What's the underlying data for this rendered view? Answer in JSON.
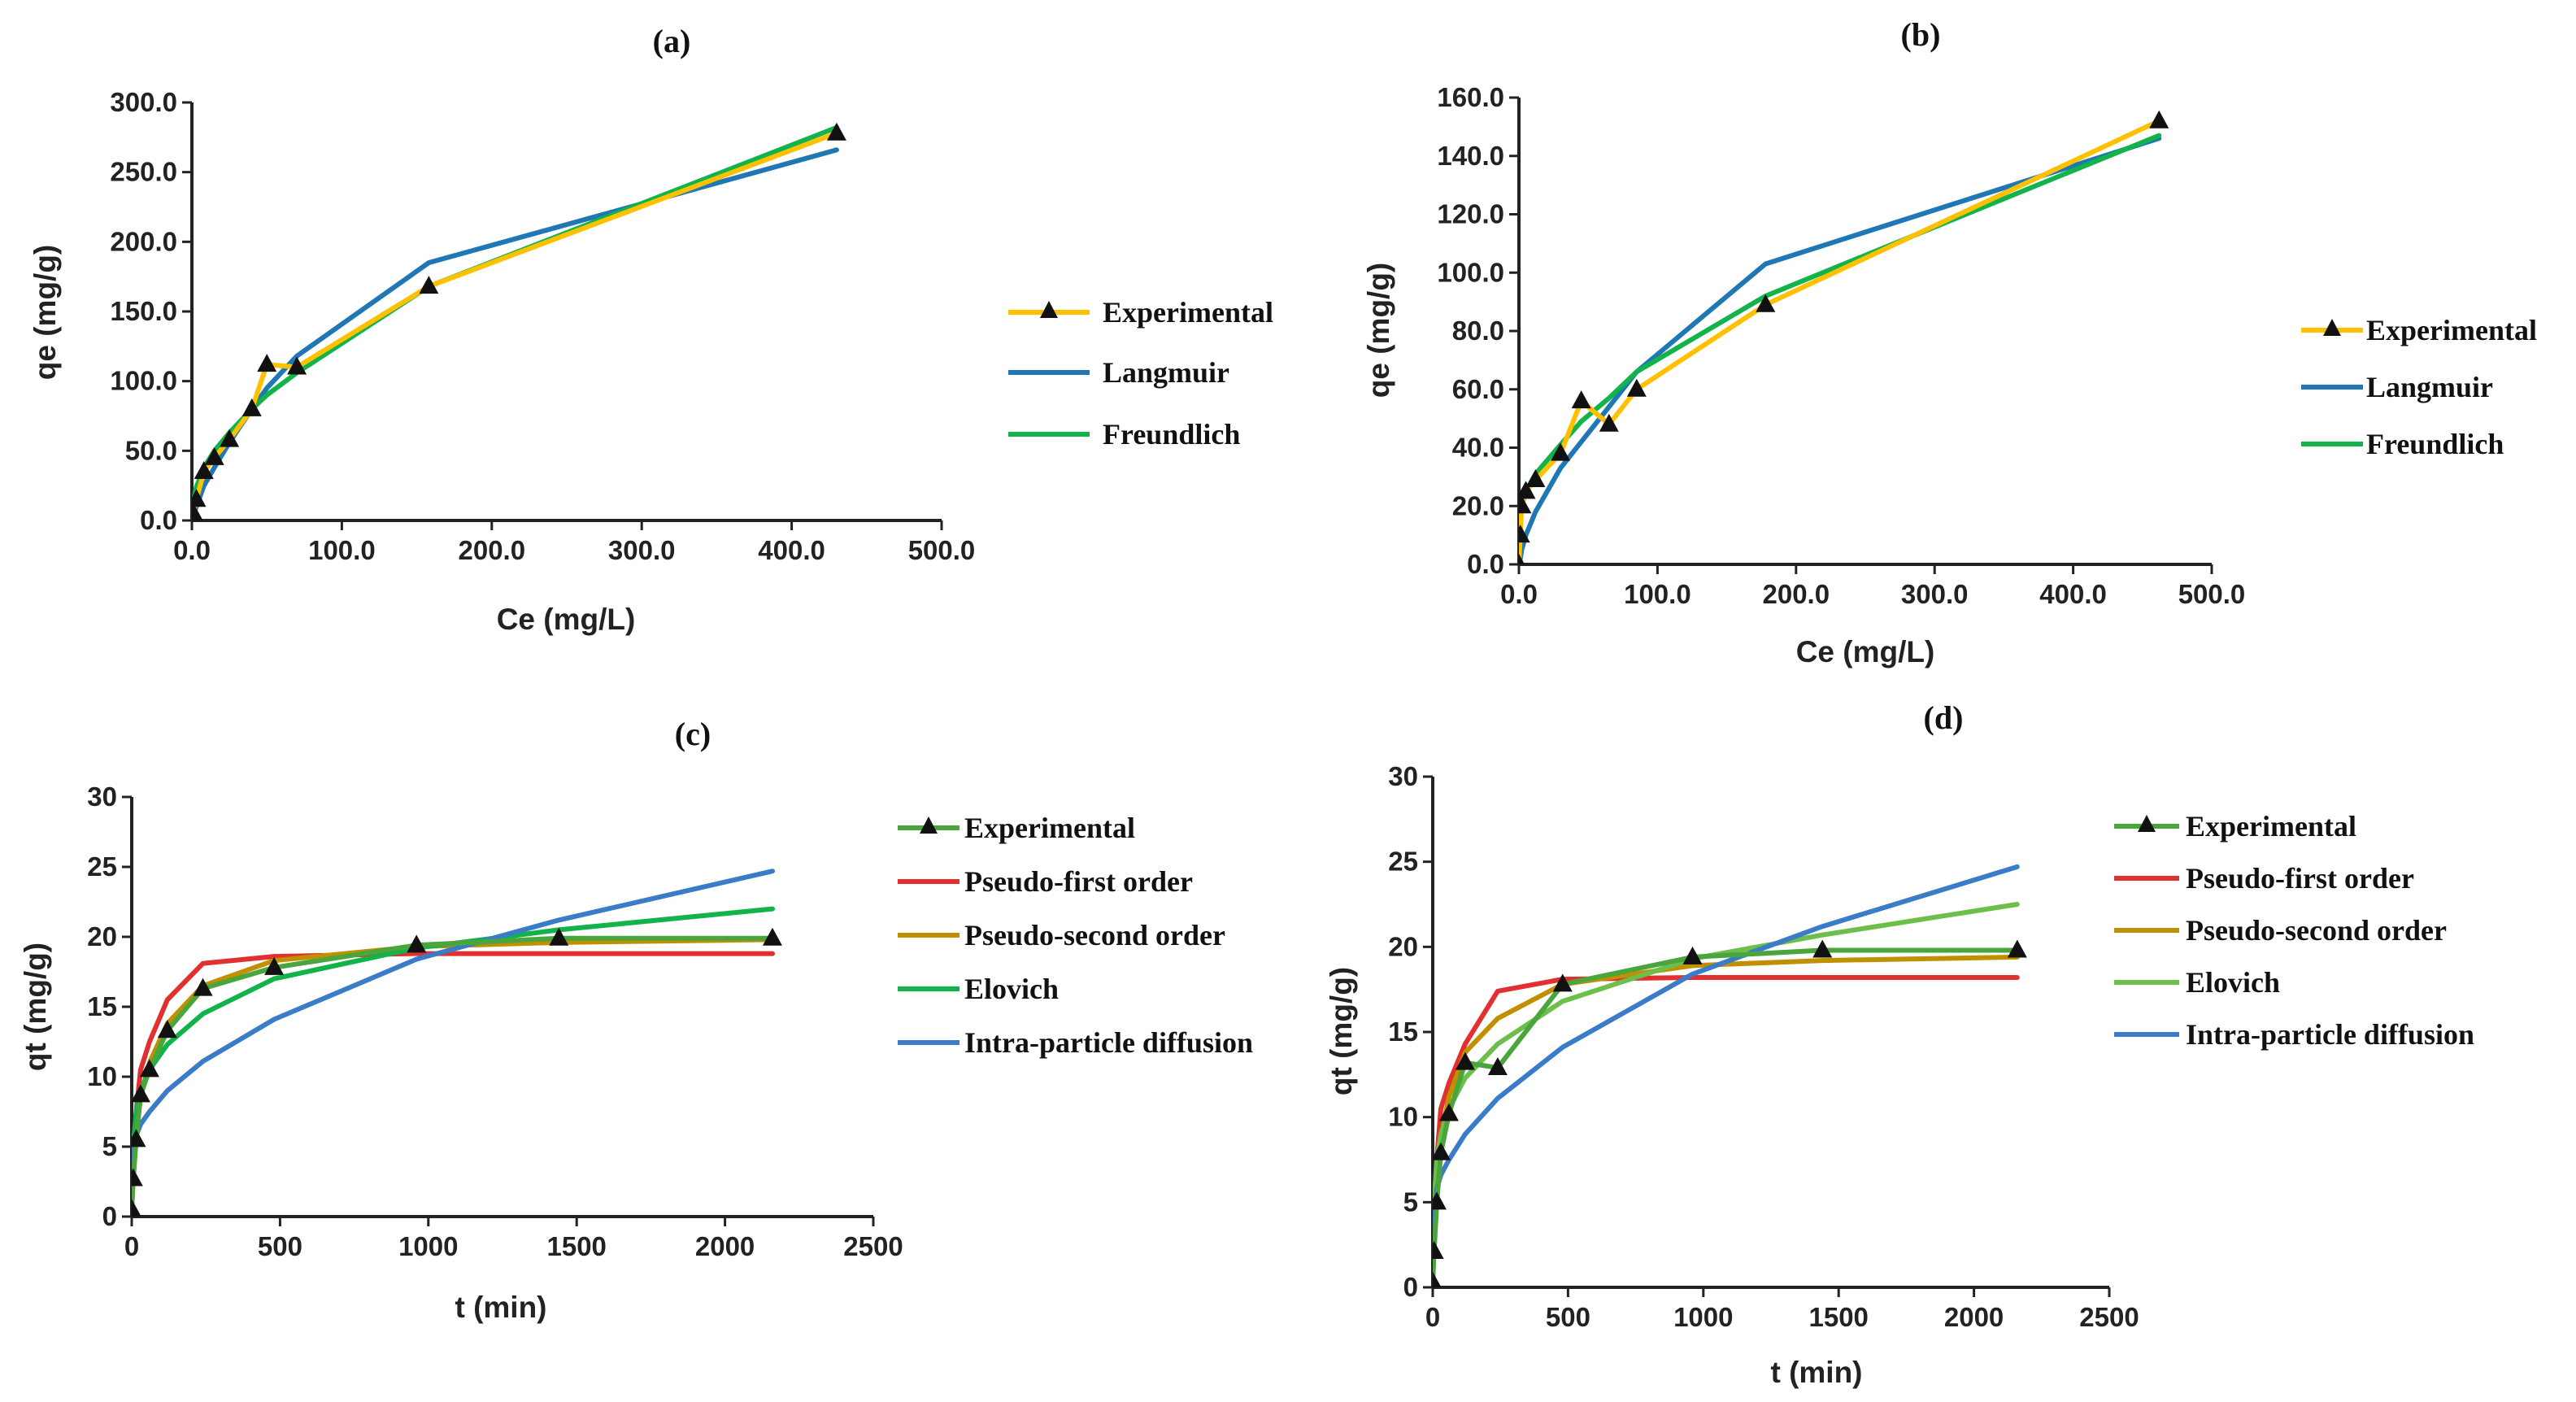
{
  "colors": {
    "experimental_ab": "#ffc000",
    "experimental_cd": "#4aa63c",
    "langmuir": "#1f77b4",
    "freundlich": "#11b34a",
    "pfo": "#e03030",
    "pso": "#c09000",
    "elovich_c": "#11b34a",
    "elovich_d": "#6cbf4a",
    "ipd": "#3a7cc8",
    "axis": "#222222",
    "marker": "#111111"
  },
  "chart_data": [
    {
      "id": "a",
      "type": "line",
      "title": "(a)",
      "xlabel": "Ce (mg/L)",
      "ylabel": "qe (mg/g)",
      "xlim": [
        0,
        500
      ],
      "ylim": [
        0,
        300
      ],
      "xticks": [
        0,
        100,
        200,
        300,
        400,
        500
      ],
      "yticks": [
        0,
        50,
        100,
        150,
        200,
        250,
        300
      ],
      "xtick_labels": [
        "0.0",
        "100.0",
        "200.0",
        "300.0",
        "400.0",
        "500.0"
      ],
      "ytick_labels": [
        "0.0",
        "50.0",
        "100.0",
        "150.0",
        "200.0",
        "250.0",
        "300.0"
      ],
      "grid": false,
      "legend_position": "right",
      "series": [
        {
          "name": "Experimental",
          "color_key": "experimental_ab",
          "marker": "triangle",
          "x": [
            0,
            1,
            3,
            8,
            15,
            25,
            40,
            50,
            70,
            158,
            430
          ],
          "y": [
            0,
            5,
            15,
            35,
            45,
            58,
            80,
            112,
            110,
            168,
            278
          ]
        },
        {
          "name": "Langmuir",
          "color_key": "langmuir",
          "marker": "none",
          "x": [
            0,
            1,
            3,
            8,
            15,
            25,
            40,
            50,
            70,
            158,
            430
          ],
          "y": [
            0,
            4,
            10,
            25,
            38,
            56,
            80,
            95,
            118,
            185,
            266
          ]
        },
        {
          "name": "Freundlich",
          "color_key": "freundlich",
          "marker": "none",
          "x": [
            0,
            1,
            3,
            8,
            15,
            25,
            40,
            50,
            70,
            158,
            430
          ],
          "y": [
            0,
            14,
            24,
            38,
            50,
            63,
            80,
            90,
            106,
            168,
            282
          ]
        }
      ]
    },
    {
      "id": "b",
      "type": "line",
      "title": "(b)",
      "xlabel": "Ce (mg/L)",
      "ylabel": "qe (mg/g)",
      "xlim": [
        0,
        500
      ],
      "ylim": [
        0,
        160
      ],
      "xticks": [
        0,
        100,
        200,
        300,
        400,
        500
      ],
      "yticks": [
        0,
        20,
        40,
        60,
        80,
        100,
        120,
        140,
        160
      ],
      "xtick_labels": [
        "0.0",
        "100.0",
        "200.0",
        "300.0",
        "400.0",
        "500.0"
      ],
      "ytick_labels": [
        "0.0",
        "20.0",
        "40.0",
        "60.0",
        "80.0",
        "100.0",
        "120.0",
        "140.0",
        "160.0"
      ],
      "grid": false,
      "legend_position": "right",
      "series": [
        {
          "name": "Experimental",
          "color_key": "experimental_ab",
          "marker": "triangle",
          "x": [
            0,
            1,
            2,
            5,
            12,
            30,
            45,
            65,
            85,
            178,
            462
          ],
          "y": [
            0,
            10,
            20,
            25,
            29,
            38,
            56,
            48,
            60,
            89,
            152
          ]
        },
        {
          "name": "Langmuir",
          "color_key": "langmuir",
          "marker": "none",
          "x": [
            0,
            1,
            2,
            5,
            12,
            30,
            45,
            65,
            85,
            178,
            462
          ],
          "y": [
            0,
            2,
            5,
            10,
            18,
            33,
            42,
            54,
            66,
            103,
            146
          ]
        },
        {
          "name": "Freundlich",
          "color_key": "freundlich",
          "marker": "none",
          "x": [
            0,
            1,
            2,
            5,
            12,
            30,
            45,
            65,
            85,
            178,
            462
          ],
          "y": [
            0,
            15,
            20,
            25,
            31,
            41,
            49,
            57,
            66,
            92,
            147
          ]
        }
      ]
    },
    {
      "id": "c",
      "type": "line",
      "title": "(c)",
      "xlabel": "t (min)",
      "ylabel": "qt (mg/g)",
      "xlim": [
        0,
        2500
      ],
      "ylim": [
        0,
        30
      ],
      "xticks": [
        0,
        500,
        1000,
        1500,
        2000,
        2500
      ],
      "yticks": [
        0,
        5,
        10,
        15,
        20,
        25,
        30
      ],
      "xtick_labels": [
        "0",
        "500",
        "1000",
        "1500",
        "2000",
        "2500"
      ],
      "ytick_labels": [
        "0",
        "5",
        "10",
        "15",
        "20",
        "25",
        "30"
      ],
      "grid": false,
      "legend_position": "right",
      "series": [
        {
          "name": "Experimental",
          "color_key": "experimental_cd",
          "marker": "triangle",
          "x": [
            0,
            5,
            15,
            30,
            60,
            120,
            240,
            480,
            960,
            1440,
            2160
          ],
          "y": [
            0.5,
            2.7,
            5.5,
            8.7,
            10.5,
            13.3,
            16.3,
            17.8,
            19.4,
            19.9,
            19.9
          ]
        },
        {
          "name": "Pseudo-first order",
          "color_key": "pfo",
          "marker": "none",
          "x": [
            0,
            5,
            15,
            30,
            60,
            120,
            240,
            480,
            960,
            1440,
            2160
          ],
          "y": [
            0.5,
            3.5,
            7.5,
            10.5,
            12.5,
            15.5,
            18.1,
            18.6,
            18.8,
            18.8,
            18.8
          ]
        },
        {
          "name": "Pseudo-second order",
          "color_key": "pso",
          "marker": "none",
          "x": [
            0,
            5,
            15,
            30,
            60,
            120,
            240,
            480,
            960,
            1440,
            2160
          ],
          "y": [
            0.5,
            2.5,
            6.0,
            8.5,
            11.0,
            13.8,
            16.5,
            18.3,
            19.3,
            19.6,
            19.8
          ]
        },
        {
          "name": "Elovich",
          "color_key": "elovich_c",
          "marker": "none",
          "x": [
            0,
            5,
            15,
            30,
            60,
            120,
            240,
            480,
            960,
            1440,
            2160
          ],
          "y": [
            0.5,
            5.0,
            7.5,
            9.0,
            10.5,
            12.3,
            14.5,
            17.0,
            19.2,
            20.5,
            22.0
          ]
        },
        {
          "name": "Intra-particle diffusion",
          "color_key": "ipd",
          "marker": "none",
          "x": [
            0,
            5,
            15,
            30,
            60,
            120,
            240,
            480,
            960,
            1440,
            2160
          ],
          "y": [
            0.5,
            4.5,
            5.8,
            6.6,
            7.5,
            9.0,
            11.1,
            14.1,
            18.4,
            21.2,
            24.7
          ]
        }
      ]
    },
    {
      "id": "d",
      "type": "line",
      "title": "(d)",
      "xlabel": "t (min)",
      "ylabel": "qt (mg/g)",
      "xlim": [
        0,
        2500
      ],
      "ylim": [
        0,
        30
      ],
      "xticks": [
        0,
        500,
        1000,
        1500,
        2000,
        2500
      ],
      "yticks": [
        0,
        5,
        10,
        15,
        20,
        25,
        30
      ],
      "xtick_labels": [
        "0",
        "500",
        "1000",
        "1500",
        "2000",
        "2500"
      ],
      "ytick_labels": [
        "0",
        "5",
        "10",
        "15",
        "20",
        "25",
        "30"
      ],
      "grid": false,
      "legend_position": "right",
      "series": [
        {
          "name": "Experimental",
          "color_key": "experimental_cd",
          "marker": "triangle",
          "x": [
            0,
            5,
            15,
            30,
            60,
            120,
            240,
            480,
            960,
            1440,
            2160
          ],
          "y": [
            0.3,
            2.1,
            5.0,
            7.9,
            10.2,
            13.2,
            12.9,
            17.8,
            19.4,
            19.8,
            19.8
          ]
        },
        {
          "name": "Pseudo-first order",
          "color_key": "pfo",
          "marker": "none",
          "x": [
            0,
            5,
            15,
            30,
            60,
            120,
            240,
            480,
            960,
            1440,
            2160
          ],
          "y": [
            0.3,
            3.5,
            7.5,
            10.5,
            12.0,
            14.3,
            17.4,
            18.1,
            18.2,
            18.2,
            18.2
          ]
        },
        {
          "name": "Pseudo-second order",
          "color_key": "pso",
          "marker": "none",
          "x": [
            0,
            5,
            15,
            30,
            60,
            120,
            240,
            480,
            960,
            1440,
            2160
          ],
          "y": [
            0.3,
            2.5,
            6.0,
            8.8,
            11.2,
            13.8,
            15.8,
            17.8,
            18.9,
            19.2,
            19.4
          ]
        },
        {
          "name": "Elovich",
          "color_key": "elovich_d",
          "marker": "none",
          "x": [
            0,
            5,
            15,
            30,
            60,
            120,
            240,
            480,
            960,
            1440,
            2160
          ],
          "y": [
            0.3,
            5.0,
            7.5,
            9.0,
            10.5,
            12.3,
            14.3,
            16.8,
            19.3,
            20.7,
            22.5
          ]
        },
        {
          "name": "Intra-particle diffusion",
          "color_key": "ipd",
          "marker": "none",
          "x": [
            0,
            5,
            15,
            30,
            60,
            120,
            240,
            480,
            960,
            1440,
            2160
          ],
          "y": [
            0.3,
            4.5,
            5.8,
            6.6,
            7.5,
            9.0,
            11.1,
            14.1,
            18.4,
            21.2,
            24.7
          ]
        }
      ]
    }
  ]
}
